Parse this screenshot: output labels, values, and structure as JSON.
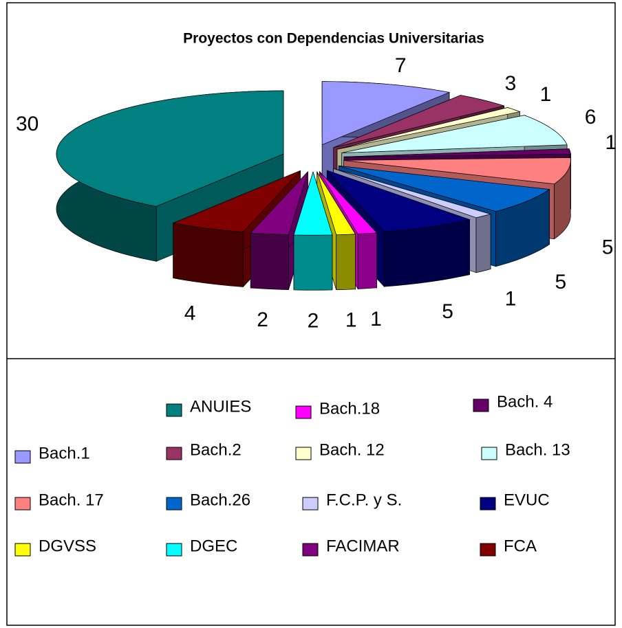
{
  "chart_data": {
    "type": "pie3d",
    "title": "Proyectos con Dependencias Universitarias",
    "categories": [
      "Bach.1",
      "Bach.2",
      "Bach. 12",
      "Bach. 13",
      "Bach. 4",
      "Bach. 17",
      "Bach.26",
      "F.C.P. y S.",
      "EVUC",
      "Bach.18",
      "DGVSS",
      "DGEC",
      "FACIMAR",
      "FCA",
      "ANUIES"
    ],
    "values": [
      7,
      3,
      1,
      6,
      1,
      5,
      5,
      1,
      5,
      1,
      1,
      2,
      2,
      4,
      30
    ],
    "colors": [
      "#9999ff",
      "#993366",
      "#ffffcc",
      "#ccffff",
      "#660066",
      "#ff8080",
      "#0066cc",
      "#ccccff",
      "#000080",
      "#ff00ff",
      "#ffff00",
      "#00ffff",
      "#800080",
      "#800000",
      "#008080"
    ]
  }
}
